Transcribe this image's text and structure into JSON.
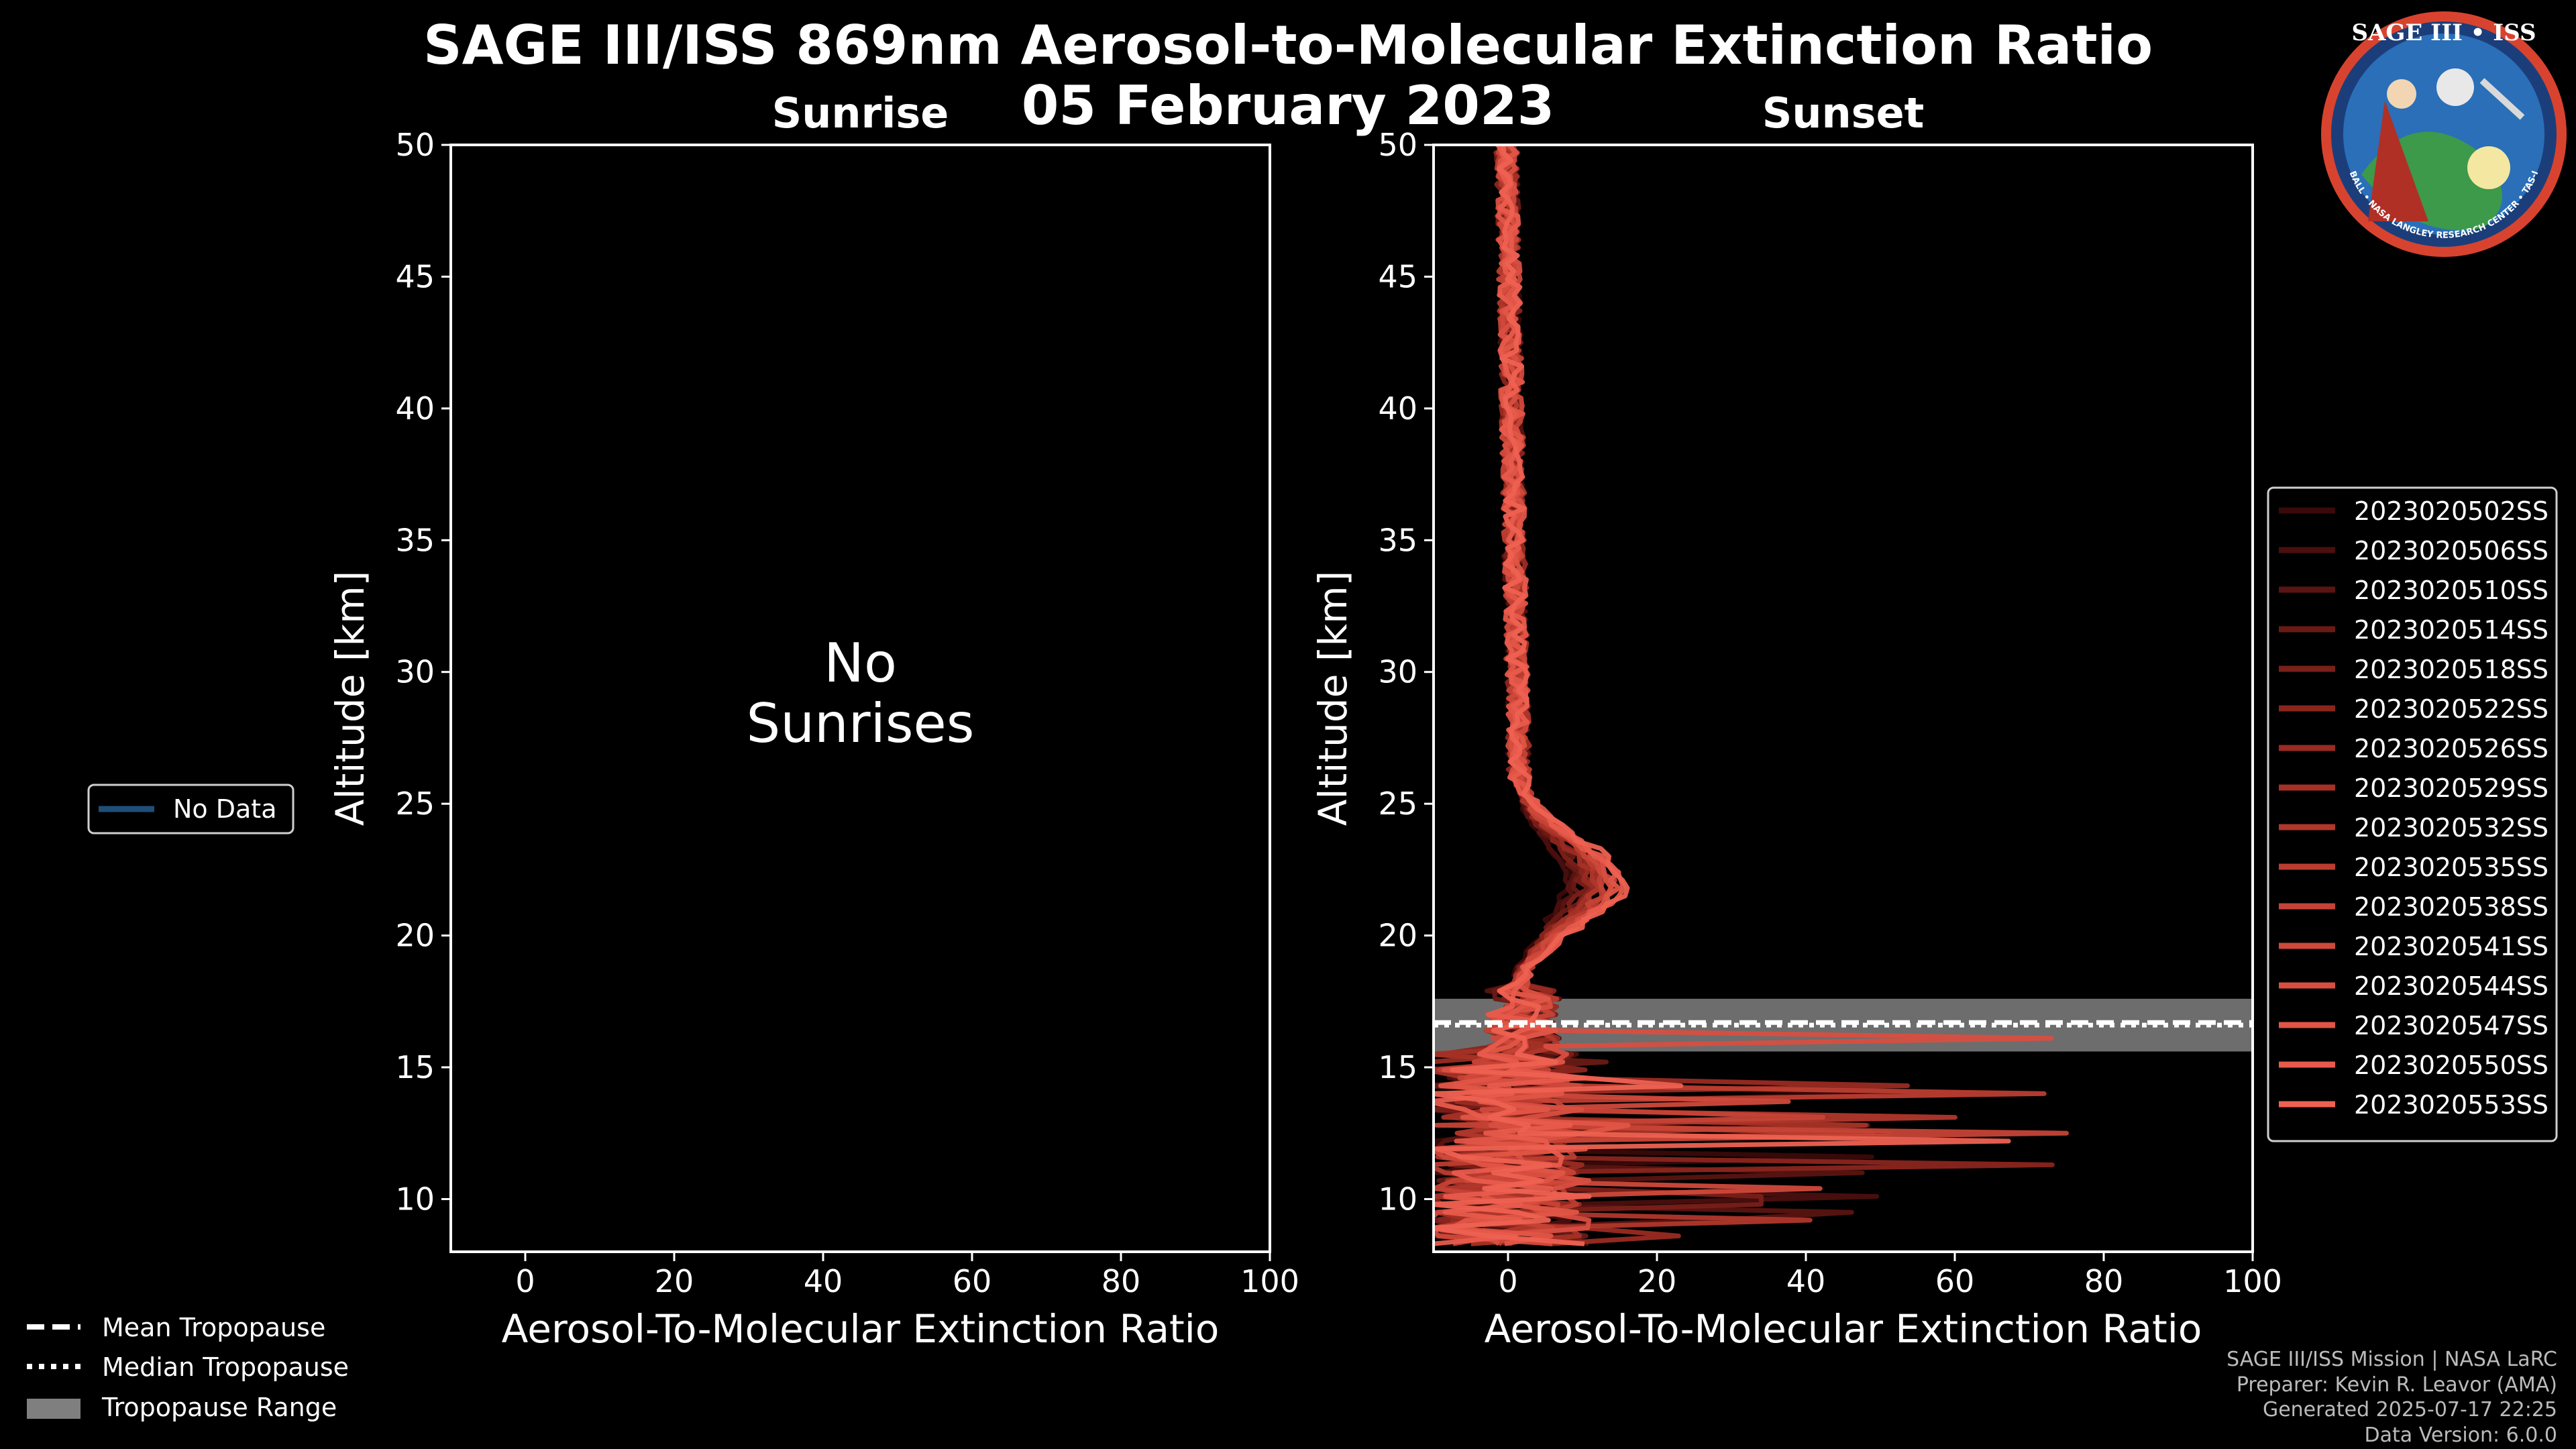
{
  "header": {
    "title_line1": "SAGE III/ISS 869nm Aerosol-to-Molecular Extinction Ratio",
    "title_line2": "05 February 2023"
  },
  "logo": {
    "text": "SAGE III • ISS",
    "ring_text": "BALL • NASA LANGLEY RESEARCH CENTER • TAS-I • ESA"
  },
  "left_legend": {
    "label": "No Data",
    "color": "#1f4e79"
  },
  "bottom_legend": {
    "mean": "Mean Tropopause",
    "median": "Median Tropopause",
    "range": "Tropopause Range"
  },
  "footer": {
    "line1": "SAGE III/ISS Mission | NASA LaRC",
    "line2": "Preparer: Kevin R. Leavor (AMA)",
    "line3": "Generated 2025-07-17 22:25",
    "line4": "Data Version: 6.0.0"
  },
  "chart_data": [
    {
      "type": "line",
      "panel": "sunrise",
      "title": "Sunrise",
      "xlabel": "Aerosol-To-Molecular Extinction Ratio",
      "ylabel": "Altitude [km]",
      "xlim": [
        -10,
        100
      ],
      "ylim": [
        8,
        50
      ],
      "xticks": [
        "0",
        "20",
        "40",
        "60",
        "80",
        "100"
      ],
      "yticks": [
        "10",
        "15",
        "20",
        "25",
        "30",
        "35",
        "40",
        "45",
        "50"
      ],
      "message_line1": "No",
      "message_line2": "Sunrises",
      "series": []
    },
    {
      "type": "line",
      "panel": "sunset",
      "title": "Sunset",
      "xlabel": "Aerosol-To-Molecular Extinction Ratio",
      "ylabel": "Altitude [km]",
      "xlim": [
        -10,
        100
      ],
      "ylim": [
        8,
        50
      ],
      "xticks": [
        "0",
        "20",
        "40",
        "60",
        "80",
        "100"
      ],
      "yticks": [
        "10",
        "15",
        "20",
        "25",
        "30",
        "35",
        "40",
        "45",
        "50"
      ],
      "tropopause": {
        "mean": 16.7,
        "median": 16.6,
        "range": [
          15.6,
          17.6
        ]
      },
      "series": [
        {
          "name": "2023020502SS",
          "color": "#3a0a0a"
        },
        {
          "name": "2023020506SS",
          "color": "#4a0f0e"
        },
        {
          "name": "2023020510SS",
          "color": "#5a1411"
        },
        {
          "name": "2023020514SS",
          "color": "#6a1a15"
        },
        {
          "name": "2023020518SS",
          "color": "#7a1f19"
        },
        {
          "name": "2023020522SS",
          "color": "#8a251d"
        },
        {
          "name": "2023020526SS",
          "color": "#992b22"
        },
        {
          "name": "2023020529SS",
          "color": "#a53126"
        },
        {
          "name": "2023020532SS",
          "color": "#b0372b"
        },
        {
          "name": "2023020535SS",
          "color": "#bb3d30"
        },
        {
          "name": "2023020538SS",
          "color": "#c54336"
        },
        {
          "name": "2023020541SS",
          "color": "#cf493b"
        },
        {
          "name": "2023020544SS",
          "color": "#d84f41"
        },
        {
          "name": "2023020547SS",
          "color": "#e05546"
        },
        {
          "name": "2023020550SS",
          "color": "#e85b4c"
        },
        {
          "name": "2023020553SS",
          "color": "#ee6151"
        }
      ]
    }
  ]
}
